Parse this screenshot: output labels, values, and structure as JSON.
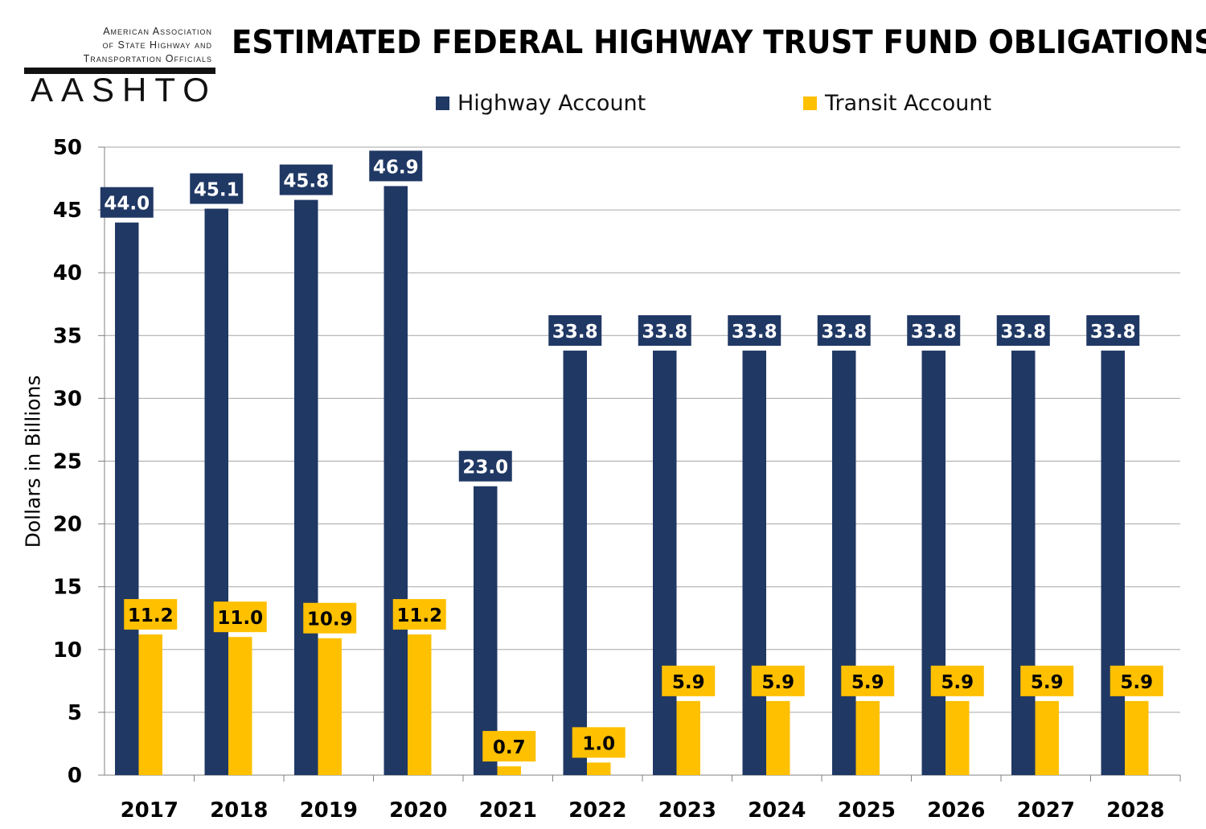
{
  "logo": {
    "line1": "American Association",
    "line2": "of State Highway and",
    "line3": "Transportation Officials",
    "wordmark": "AASHTO"
  },
  "chart_data": {
    "type": "bar",
    "title": "ESTIMATED FEDERAL HIGHWAY TRUST FUND OBLIGATIONS",
    "xlabel": "",
    "ylabel": "Dollars in Billions",
    "ylim": [
      0,
      50
    ],
    "yticks": [
      0,
      5,
      10,
      15,
      20,
      25,
      30,
      35,
      40,
      45,
      50
    ],
    "grid": true,
    "legend_position": "top",
    "categories": [
      "2017",
      "2018",
      "2019",
      "2020",
      "2021",
      "2022",
      "2023",
      "2024",
      "2025",
      "2026",
      "2027",
      "2028"
    ],
    "series": [
      {
        "name": "Highway Account",
        "color": "#203864",
        "label_text_color": "#ffffff",
        "values": [
          44.0,
          45.1,
          45.8,
          46.9,
          23.0,
          33.8,
          33.8,
          33.8,
          33.8,
          33.8,
          33.8,
          33.8
        ]
      },
      {
        "name": "Transit Account",
        "color": "#FFC000",
        "label_text_color": "#000000",
        "values": [
          11.2,
          11.0,
          10.9,
          11.2,
          0.7,
          1.0,
          5.9,
          5.9,
          5.9,
          5.9,
          5.9,
          5.9
        ]
      }
    ]
  }
}
